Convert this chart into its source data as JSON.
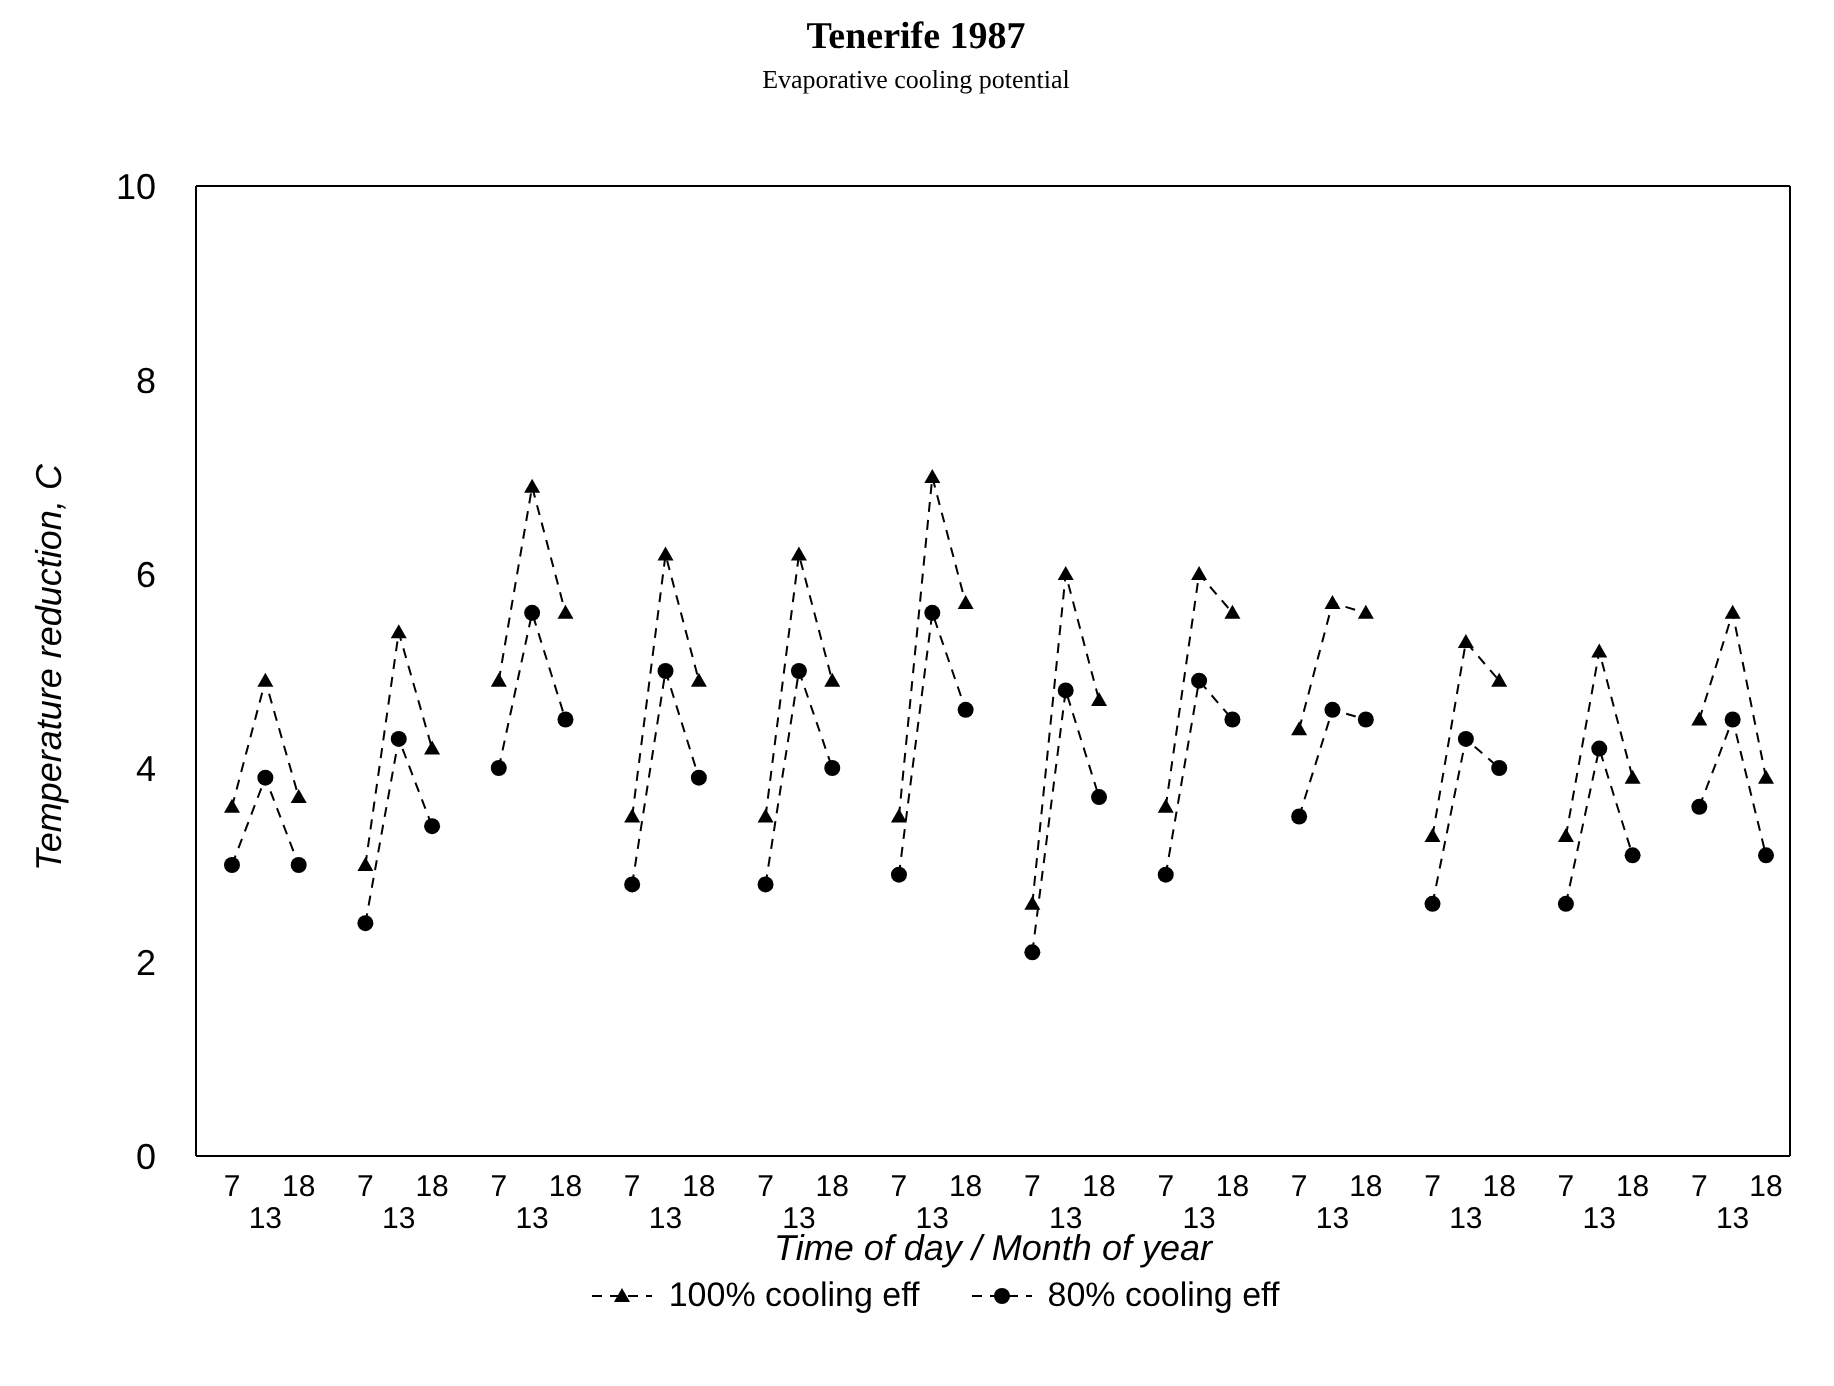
{
  "chart_data": {
    "type": "line",
    "title": "Tenerife 1987",
    "subtitle": "Evaporative cooling potential",
    "xlabel": "Time of day / Month of year",
    "ylabel": "Temperature reduction, C",
    "categories": [
      "7",
      "13",
      "18",
      null,
      "7",
      "13",
      "18",
      null,
      "7",
      "13",
      "18",
      null,
      "7",
      "13",
      "18",
      null,
      "7",
      "13",
      "18",
      null,
      "7",
      "13",
      "18",
      null,
      "7",
      "13",
      "18",
      null,
      "7",
      "13",
      "18",
      null,
      "7",
      "13",
      "18",
      null,
      "7",
      "13",
      "18",
      null,
      "7",
      "13",
      "18",
      null,
      "7",
      "13",
      "18"
    ],
    "series": [
      {
        "name": "100% cooling eff",
        "color": "#000000",
        "marker": "triangle",
        "line_style": "dashed",
        "values": [
          3.6,
          4.9,
          3.7,
          null,
          3.0,
          5.4,
          4.2,
          null,
          4.9,
          6.9,
          5.6,
          null,
          3.5,
          6.2,
          4.9,
          null,
          3.5,
          6.2,
          4.9,
          null,
          3.5,
          7.0,
          5.7,
          null,
          2.6,
          6.0,
          4.7,
          null,
          3.6,
          6.0,
          5.6,
          null,
          4.4,
          5.7,
          5.6,
          null,
          3.3,
          5.3,
          4.9,
          null,
          3.3,
          5.2,
          3.9,
          null,
          4.5,
          5.6,
          3.9
        ]
      },
      {
        "name": "80% cooling eff",
        "color": "#000000",
        "marker": "circle",
        "line_style": "dashed",
        "values": [
          3.0,
          3.9,
          3.0,
          null,
          2.4,
          4.3,
          3.4,
          null,
          4.0,
          5.6,
          4.5,
          null,
          2.8,
          5.0,
          3.9,
          null,
          2.8,
          5.0,
          4.0,
          null,
          2.9,
          5.6,
          4.6,
          null,
          2.1,
          4.8,
          3.7,
          null,
          2.9,
          4.9,
          4.5,
          null,
          3.5,
          4.6,
          4.5,
          null,
          2.6,
          4.3,
          4.0,
          null,
          2.6,
          4.2,
          3.1,
          null,
          3.6,
          4.5,
          3.1
        ]
      }
    ],
    "ylim": [
      0,
      10
    ],
    "yticks": [
      0,
      2,
      4,
      6,
      8,
      10
    ],
    "grid": false,
    "legend": "bottom"
  }
}
